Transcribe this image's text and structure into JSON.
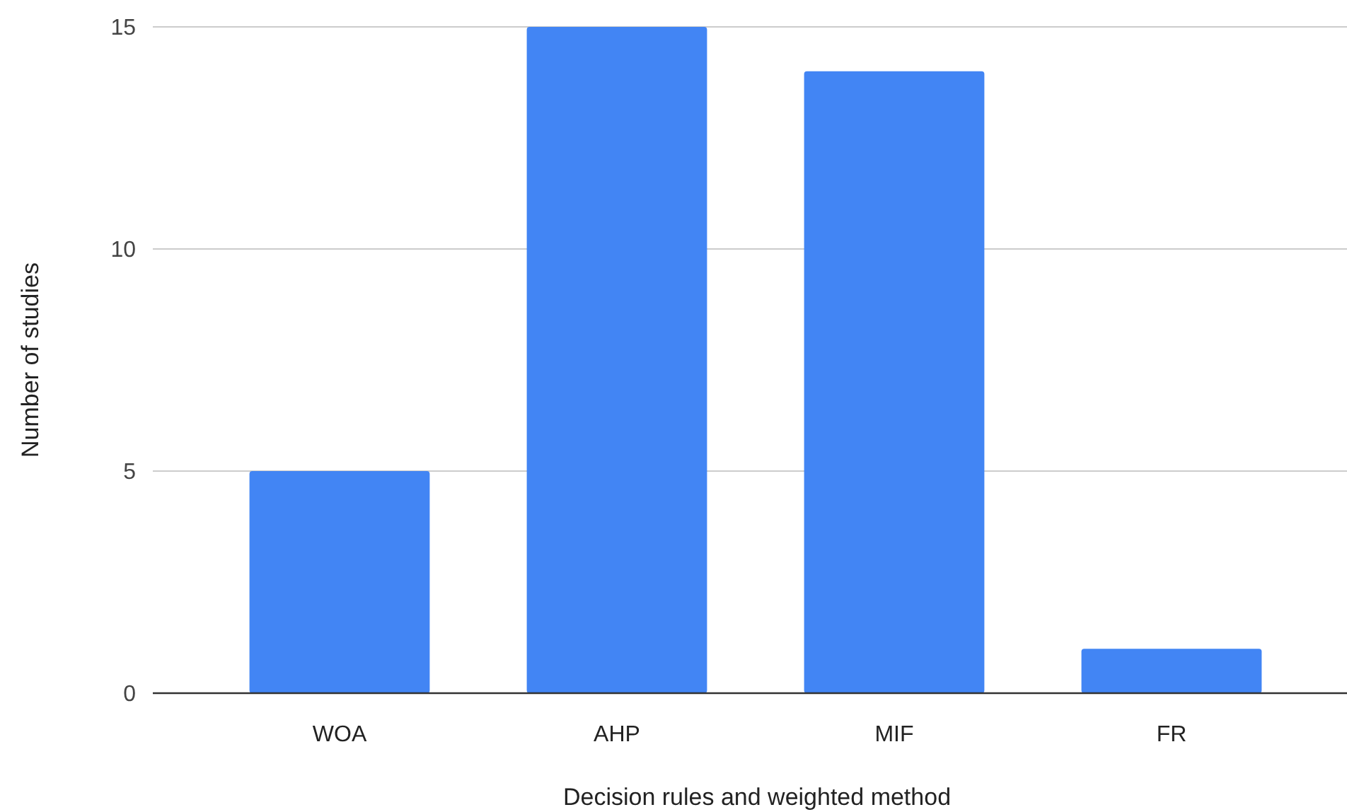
{
  "chart_data": {
    "type": "bar",
    "xlabel": "Decision rules and weighted method",
    "ylabel": "Number of studies",
    "categories": [
      "WOA",
      "AHP",
      "MIF",
      "FR"
    ],
    "values": [
      5,
      15,
      14,
      1
    ],
    "color": "#4285f4",
    "ylim": [
      0,
      15
    ],
    "yticks": [
      0,
      5,
      10,
      15
    ],
    "grid": "y"
  }
}
